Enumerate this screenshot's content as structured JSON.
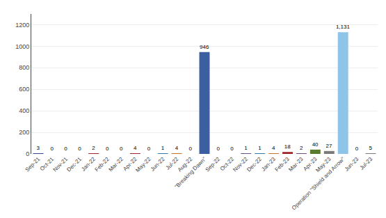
{
  "chart_data": {
    "type": "bar",
    "categories": [
      "Sep-21",
      "Oct-21",
      "Nov-21",
      "Dec-21",
      "Jan-22",
      "Feb-22",
      "Mar-22",
      "Apr-22",
      "May-22",
      "Jun-22",
      "Jul-22",
      "Aug-22",
      "\"Breaking Dawn\"",
      "Sep-22",
      "Oct-22",
      "Nov-22",
      "Dec-22",
      "Jan-23",
      "Feb-23",
      "Mar-23",
      "Apr-23",
      "May-23",
      "Operation \"Shield and Arrow\"",
      "Jun-23",
      "Jul-23"
    ],
    "values": [
      3,
      0,
      0,
      0,
      2,
      0,
      0,
      4,
      0,
      1,
      4,
      0,
      946,
      0,
      0,
      1,
      1,
      4,
      18,
      2,
      40,
      27,
      1131,
      0,
      5
    ],
    "value_labels": [
      "3",
      "0",
      "0",
      "0",
      "2",
      "0",
      "0",
      "4",
      "0",
      "1",
      "4",
      "0",
      "946",
      "0",
      "0",
      "1",
      "1",
      "4",
      "18",
      "2",
      "40",
      "27",
      "1,131",
      "0",
      "5"
    ],
    "colors": [
      "#34438C",
      "#9E2527",
      "#5A7A2E",
      "#2D4A6B",
      "#9E2527",
      "#7A4B2B",
      "#5A7A2E",
      "#9E2527",
      "#5A7A2E",
      "#2A7FA5",
      "#C87328",
      "#9E2527",
      "#3B5FA0",
      "#9E2527",
      "#5A7A2E",
      "#6A4B8C",
      "#2A7FA5",
      "#C87328",
      "#9E2527",
      "#6A4B8C",
      "#5A7A2E",
      "#7A7A7A",
      "#8EC4E8",
      "#C87328",
      "#7A7A7A"
    ],
    "ylim": [
      0,
      1300
    ],
    "yticks": [
      0,
      200,
      400,
      600,
      800,
      1000,
      1200
    ],
    "grid": true,
    "data_labels": true
  }
}
